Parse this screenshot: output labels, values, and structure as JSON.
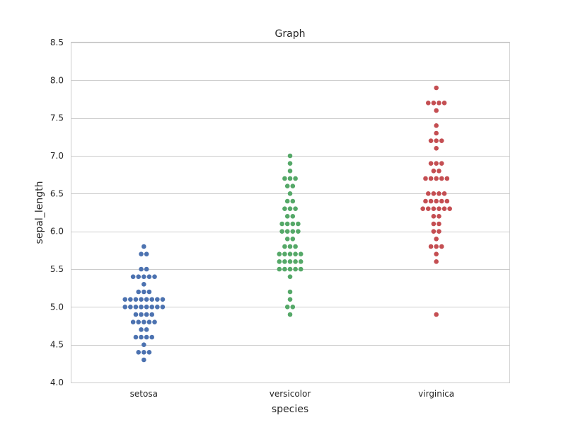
{
  "chart_data": {
    "type": "scatter",
    "subtype": "swarm",
    "title": "Graph",
    "xlabel": "species",
    "ylabel": "sepal_length",
    "categories": [
      "setosa",
      "versicolor",
      "virginica"
    ],
    "ylim": [
      4.0,
      8.5
    ],
    "yticks": [
      "4.0",
      "4.5",
      "5.0",
      "5.5",
      "6.0",
      "6.5",
      "7.0",
      "7.5",
      "8.0",
      "8.5"
    ],
    "grid": "horizontal",
    "colors": [
      "#4c72b0",
      "#55a868",
      "#c44e52"
    ],
    "series": [
      {
        "values": [
          5.1,
          4.9,
          4.7,
          4.6,
          5.0,
          5.4,
          4.6,
          5.0,
          4.4,
          4.9,
          5.4,
          4.8,
          4.8,
          4.3,
          5.8,
          5.7,
          5.4,
          5.1,
          5.7,
          5.1,
          5.4,
          5.1,
          4.6,
          5.1,
          4.8,
          5.0,
          5.0,
          5.2,
          5.2,
          4.7,
          4.8,
          5.4,
          5.2,
          5.5,
          4.9,
          5.0,
          5.5,
          4.9,
          4.4,
          5.1,
          5.0,
          4.5,
          4.4,
          5.0,
          5.1,
          4.8,
          5.1,
          4.6,
          5.3,
          5.0
        ]
      },
      {
        "values": [
          7.0,
          6.4,
          6.9,
          5.5,
          6.5,
          5.7,
          6.3,
          4.9,
          6.6,
          5.2,
          5.0,
          5.9,
          6.0,
          6.1,
          5.6,
          6.7,
          5.6,
          5.8,
          6.2,
          5.6,
          5.9,
          6.1,
          6.3,
          6.1,
          6.4,
          6.6,
          6.8,
          6.7,
          6.0,
          5.7,
          5.5,
          5.5,
          5.8,
          6.0,
          5.4,
          6.0,
          6.7,
          6.3,
          5.6,
          5.5,
          5.5,
          6.1,
          5.8,
          5.0,
          5.6,
          5.7,
          5.7,
          6.2,
          5.1,
          5.7
        ]
      },
      {
        "values": [
          6.3,
          5.8,
          7.1,
          6.3,
          6.5,
          7.6,
          4.9,
          7.3,
          6.7,
          7.2,
          6.5,
          6.4,
          6.8,
          5.7,
          5.8,
          6.4,
          6.5,
          7.7,
          7.7,
          6.0,
          6.9,
          5.6,
          7.7,
          6.3,
          6.7,
          7.2,
          6.2,
          6.1,
          6.4,
          7.2,
          7.4,
          7.9,
          6.4,
          6.3,
          6.1,
          7.7,
          6.3,
          6.4,
          6.0,
          6.9,
          6.7,
          6.9,
          5.8,
          6.8,
          6.7,
          6.7,
          6.3,
          6.5,
          6.2,
          5.9
        ]
      }
    ]
  }
}
